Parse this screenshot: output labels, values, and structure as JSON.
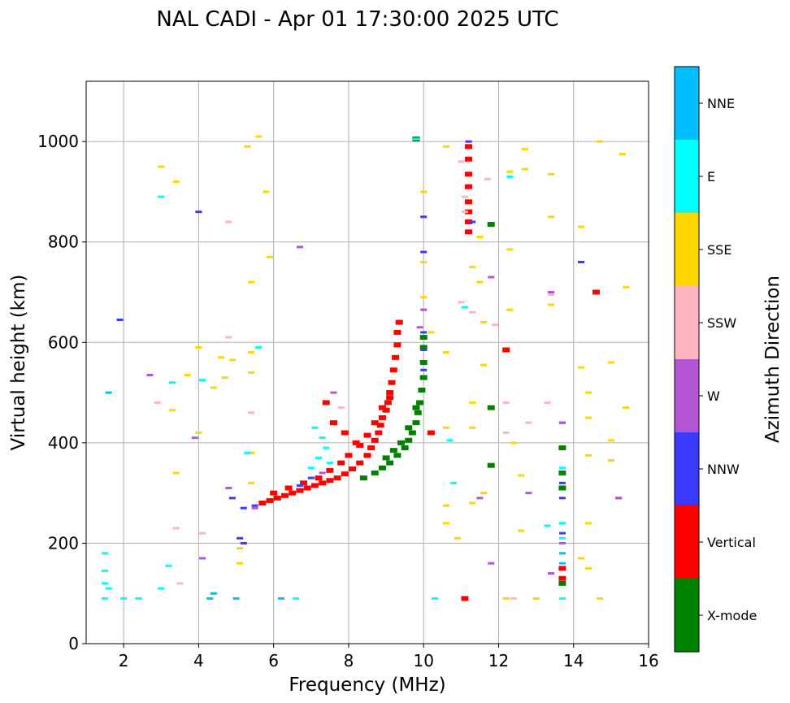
{
  "chart_data": {
    "type": "scatter",
    "title": "NAL CADI - Apr 01 17:30:00 2025 UTC",
    "xlabel": "Frequency (MHz)",
    "ylabel": "Virtual height (km)",
    "xlim": [
      1,
      16
    ],
    "ylim": [
      0,
      1120
    ],
    "xticks": [
      2,
      4,
      6,
      8,
      10,
      12,
      14,
      16
    ],
    "yticks": [
      0,
      200,
      400,
      600,
      800,
      1000
    ],
    "grid": true,
    "colorbar": {
      "label": "Azimuth Direction",
      "position": "right",
      "categories": [
        {
          "name": "X-mode",
          "color": "#008000"
        },
        {
          "name": "Vertical",
          "color": "#ff0000"
        },
        {
          "name": "NNW",
          "color": "#3a3aff"
        },
        {
          "name": "W",
          "color": "#b455d6"
        },
        {
          "name": "SSW",
          "color": "#ffb6c1"
        },
        {
          "name": "SSE",
          "color": "#ffd700"
        },
        {
          "name": "E",
          "color": "#00ffff"
        },
        {
          "name": "NNE",
          "color": "#00bfff"
        }
      ]
    },
    "series": [
      {
        "name": "Vertical",
        "points": [
          [
            5.7,
            280
          ],
          [
            5.9,
            285
          ],
          [
            6.1,
            290
          ],
          [
            6.3,
            295
          ],
          [
            6.5,
            300
          ],
          [
            6.7,
            305
          ],
          [
            6.9,
            310
          ],
          [
            7.1,
            315
          ],
          [
            7.3,
            320
          ],
          [
            7.5,
            325
          ],
          [
            7.7,
            330
          ],
          [
            7.9,
            338
          ],
          [
            8.1,
            348
          ],
          [
            8.3,
            360
          ],
          [
            8.5,
            375
          ],
          [
            8.6,
            390
          ],
          [
            8.7,
            405
          ],
          [
            8.8,
            420
          ],
          [
            8.85,
            435
          ],
          [
            8.9,
            450
          ],
          [
            9.0,
            465
          ],
          [
            9.05,
            480
          ],
          [
            9.1,
            500
          ],
          [
            9.15,
            520
          ],
          [
            9.2,
            545
          ],
          [
            9.25,
            570
          ],
          [
            9.3,
            595
          ],
          [
            9.3,
            620
          ],
          [
            9.35,
            640
          ],
          [
            6.0,
            300
          ],
          [
            6.4,
            310
          ],
          [
            6.8,
            320
          ],
          [
            7.2,
            330
          ],
          [
            7.5,
            345
          ],
          [
            7.8,
            360
          ],
          [
            8.0,
            375
          ],
          [
            8.3,
            395
          ],
          [
            8.5,
            415
          ],
          [
            8.7,
            440
          ],
          [
            8.9,
            470
          ],
          [
            9.1,
            490
          ],
          [
            7.4,
            480
          ],
          [
            7.6,
            440
          ],
          [
            7.9,
            420
          ],
          [
            8.2,
            400
          ],
          [
            11.2,
            820
          ],
          [
            11.2,
            840
          ],
          [
            11.2,
            860
          ],
          [
            11.2,
            880
          ],
          [
            11.2,
            910
          ],
          [
            11.2,
            935
          ],
          [
            11.2,
            965
          ],
          [
            11.2,
            990
          ],
          [
            11.1,
            90
          ],
          [
            12.2,
            585
          ],
          [
            13.7,
            150
          ],
          [
            13.7,
            130
          ],
          [
            14.6,
            700
          ],
          [
            10.2,
            420
          ]
        ]
      },
      {
        "name": "X-mode",
        "points": [
          [
            8.4,
            330
          ],
          [
            8.7,
            340
          ],
          [
            8.9,
            350
          ],
          [
            9.1,
            360
          ],
          [
            9.3,
            375
          ],
          [
            9.5,
            390
          ],
          [
            9.6,
            405
          ],
          [
            9.7,
            420
          ],
          [
            9.8,
            440
          ],
          [
            9.85,
            460
          ],
          [
            9.9,
            480
          ],
          [
            9.95,
            505
          ],
          [
            10.0,
            530
          ],
          [
            10.0,
            560
          ],
          [
            10.0,
            590
          ],
          [
            10.0,
            610
          ],
          [
            9.0,
            370
          ],
          [
            9.2,
            385
          ],
          [
            9.4,
            400
          ],
          [
            9.6,
            430
          ],
          [
            9.8,
            470
          ],
          [
            13.7,
            390
          ],
          [
            13.7,
            340
          ],
          [
            13.7,
            310
          ],
          [
            13.7,
            120
          ],
          [
            11.8,
            470
          ],
          [
            11.8,
            355
          ],
          [
            11.8,
            835
          ],
          [
            9.8,
            1005
          ]
        ]
      },
      {
        "name": "NNW",
        "points": [
          [
            5.2,
            270
          ],
          [
            5.5,
            275
          ],
          [
            4.9,
            290
          ],
          [
            5.1,
            210
          ],
          [
            5.2,
            200
          ],
          [
            6.7,
            315
          ],
          [
            7.0,
            330
          ],
          [
            10.0,
            620
          ],
          [
            10.0,
            585
          ],
          [
            10.0,
            545
          ],
          [
            10.0,
            780
          ],
          [
            10.0,
            850
          ],
          [
            11.3,
            840
          ],
          [
            11.2,
            1000
          ],
          [
            13.7,
            440
          ],
          [
            13.7,
            320
          ],
          [
            13.7,
            290
          ],
          [
            13.7,
            220
          ],
          [
            14.2,
            760
          ],
          [
            15.2,
            290
          ],
          [
            4.0,
            860
          ],
          [
            1.9,
            645
          ]
        ]
      },
      {
        "name": "W",
        "points": [
          [
            6.7,
            790
          ],
          [
            7.6,
            500
          ],
          [
            7.3,
            340
          ],
          [
            9.9,
            630
          ],
          [
            10.0,
            665
          ],
          [
            11.5,
            290
          ],
          [
            12.8,
            300
          ],
          [
            13.4,
            700
          ],
          [
            13.4,
            140
          ],
          [
            13.7,
            200
          ],
          [
            13.7,
            440
          ],
          [
            15.2,
            290
          ],
          [
            11.8,
            160
          ],
          [
            11.8,
            730
          ],
          [
            4.1,
            170
          ],
          [
            3.9,
            410
          ],
          [
            2.7,
            535
          ],
          [
            4.8,
            310
          ],
          [
            5.5,
            270
          ]
        ]
      },
      {
        "name": "SSW",
        "points": [
          [
            2.9,
            480
          ],
          [
            3.4,
            230
          ],
          [
            4.1,
            220
          ],
          [
            3.5,
            120
          ],
          [
            4.8,
            840
          ],
          [
            4.8,
            610
          ],
          [
            5.4,
            460
          ],
          [
            7.8,
            470
          ],
          [
            11.0,
            960
          ],
          [
            11.1,
            890
          ],
          [
            11.1,
            860
          ],
          [
            11.3,
            660
          ],
          [
            11.0,
            680
          ],
          [
            12.2,
            480
          ],
          [
            12.2,
            420
          ],
          [
            12.8,
            440
          ],
          [
            13.3,
            480
          ],
          [
            13.4,
            695
          ],
          [
            11.9,
            635
          ],
          [
            12.4,
            90
          ],
          [
            11.7,
            925
          ]
        ]
      },
      {
        "name": "SSE",
        "points": [
          [
            3.0,
            950
          ],
          [
            3.4,
            920
          ],
          [
            3.3,
            465
          ],
          [
            3.7,
            535
          ],
          [
            3.4,
            340
          ],
          [
            4.0,
            590
          ],
          [
            4.0,
            420
          ],
          [
            4.4,
            510
          ],
          [
            4.6,
            570
          ],
          [
            4.7,
            530
          ],
          [
            4.9,
            565
          ],
          [
            5.4,
            720
          ],
          [
            5.4,
            580
          ],
          [
            5.4,
            540
          ],
          [
            5.4,
            380
          ],
          [
            5.4,
            320
          ],
          [
            5.8,
            900
          ],
          [
            5.6,
            1010
          ],
          [
            5.9,
            770
          ],
          [
            5.3,
            990
          ],
          [
            5.1,
            160
          ],
          [
            5.1,
            190
          ],
          [
            10.0,
            900
          ],
          [
            10.0,
            760
          ],
          [
            10.0,
            690
          ],
          [
            10.2,
            620
          ],
          [
            10.6,
            990
          ],
          [
            10.6,
            580
          ],
          [
            10.6,
            430
          ],
          [
            10.6,
            275
          ],
          [
            10.6,
            240
          ],
          [
            10.9,
            210
          ],
          [
            11.3,
            750
          ],
          [
            11.5,
            810
          ],
          [
            11.5,
            720
          ],
          [
            11.6,
            300
          ],
          [
            11.3,
            430
          ],
          [
            11.3,
            480
          ],
          [
            11.6,
            640
          ],
          [
            11.6,
            555
          ],
          [
            11.3,
            280
          ],
          [
            12.3,
            940
          ],
          [
            12.3,
            785
          ],
          [
            12.3,
            665
          ],
          [
            12.4,
            400
          ],
          [
            12.6,
            335
          ],
          [
            12.6,
            225
          ],
          [
            12.7,
            985
          ],
          [
            12.7,
            945
          ],
          [
            13.4,
            935
          ],
          [
            13.4,
            850
          ],
          [
            13.4,
            675
          ],
          [
            14.2,
            830
          ],
          [
            14.2,
            550
          ],
          [
            14.4,
            500
          ],
          [
            14.4,
            450
          ],
          [
            14.4,
            375
          ],
          [
            14.4,
            240
          ],
          [
            14.2,
            170
          ],
          [
            14.4,
            150
          ],
          [
            14.7,
            1000
          ],
          [
            14.7,
            90
          ],
          [
            15.0,
            560
          ],
          [
            15.0,
            405
          ],
          [
            15.0,
            365
          ],
          [
            15.3,
            975
          ],
          [
            15.4,
            710
          ],
          [
            15.4,
            470
          ],
          [
            12.2,
            90
          ],
          [
            13.0,
            90
          ]
        ]
      },
      {
        "name": "E",
        "points": [
          [
            1.5,
            90
          ],
          [
            1.5,
            120
          ],
          [
            1.5,
            145
          ],
          [
            1.6,
            110
          ],
          [
            1.5,
            180
          ],
          [
            2.0,
            90
          ],
          [
            2.4,
            90
          ],
          [
            3.0,
            890
          ],
          [
            3.0,
            110
          ],
          [
            3.2,
            155
          ],
          [
            3.3,
            520
          ],
          [
            4.1,
            525
          ],
          [
            4.4,
            100
          ],
          [
            5.3,
            380
          ],
          [
            5.6,
            590
          ],
          [
            6.6,
            90
          ],
          [
            7.0,
            350
          ],
          [
            7.2,
            370
          ],
          [
            7.4,
            390
          ],
          [
            7.5,
            360
          ],
          [
            7.3,
            410
          ],
          [
            7.1,
            430
          ],
          [
            10.3,
            90
          ],
          [
            10.7,
            405
          ],
          [
            10.8,
            320
          ],
          [
            11.1,
            670
          ],
          [
            12.3,
            930
          ],
          [
            13.3,
            235
          ],
          [
            13.7,
            240
          ],
          [
            13.7,
            350
          ],
          [
            13.7,
            210
          ],
          [
            13.7,
            90
          ],
          [
            9.8,
            1005
          ]
        ]
      },
      {
        "name": "NNE",
        "points": [
          [
            1.6,
            500
          ],
          [
            4.3,
            90
          ],
          [
            4.4,
            100
          ],
          [
            5.0,
            90
          ],
          [
            6.2,
            90
          ],
          [
            13.7,
            160
          ],
          [
            13.7,
            180
          ]
        ]
      }
    ]
  }
}
